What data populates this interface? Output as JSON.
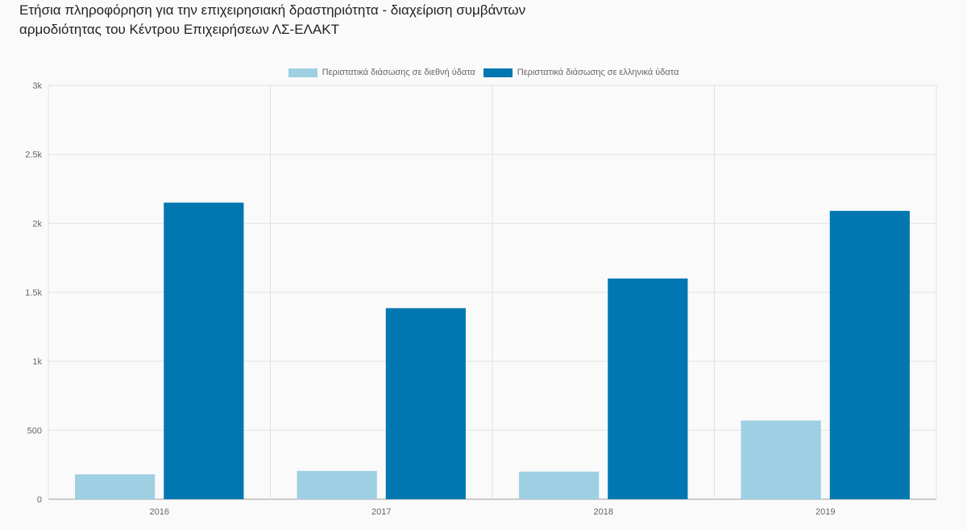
{
  "title_lines": [
    "Ετήσια πληροφόρηση για την επιχειρησιακή δραστηριότητα - διαχείριση συμβάντων",
    "αρμοδιότητας του Κέντρου Επιχειρήσεων ΛΣ-ΕΛΑΚΤ"
  ],
  "chart_data": {
    "type": "bar",
    "title": "Ετήσια πληροφόρηση για την επιχειρησιακή δραστηριότητα - διαχείριση συμβάντων αρμοδιότητας του Κέντρου Επιχειρήσεων ΛΣ-ΕΛΑΚΤ",
    "categories": [
      "2016",
      "2017",
      "2018",
      "2019"
    ],
    "series": [
      {
        "name": "Περιστατικά διάσωσης σε διεθνή ύδατα",
        "color": "#9ecfe2",
        "values": [
          180,
          205,
          200,
          570
        ]
      },
      {
        "name": "Περιστατικά διάσωσης σε ελληνικά ύδατα",
        "color": "#0077b0",
        "values": [
          2150,
          1385,
          1600,
          2090
        ]
      }
    ],
    "ylim": [
      0,
      3000
    ],
    "yticks": [
      0,
      500,
      1000,
      1500,
      2000,
      2500,
      3000
    ],
    "ytick_labels": [
      "0",
      "500",
      "1k",
      "1.5k",
      "2k",
      "2.5k",
      "3k"
    ],
    "xlabel": "",
    "ylabel": "",
    "grid": true,
    "legend_position": "top-center"
  }
}
